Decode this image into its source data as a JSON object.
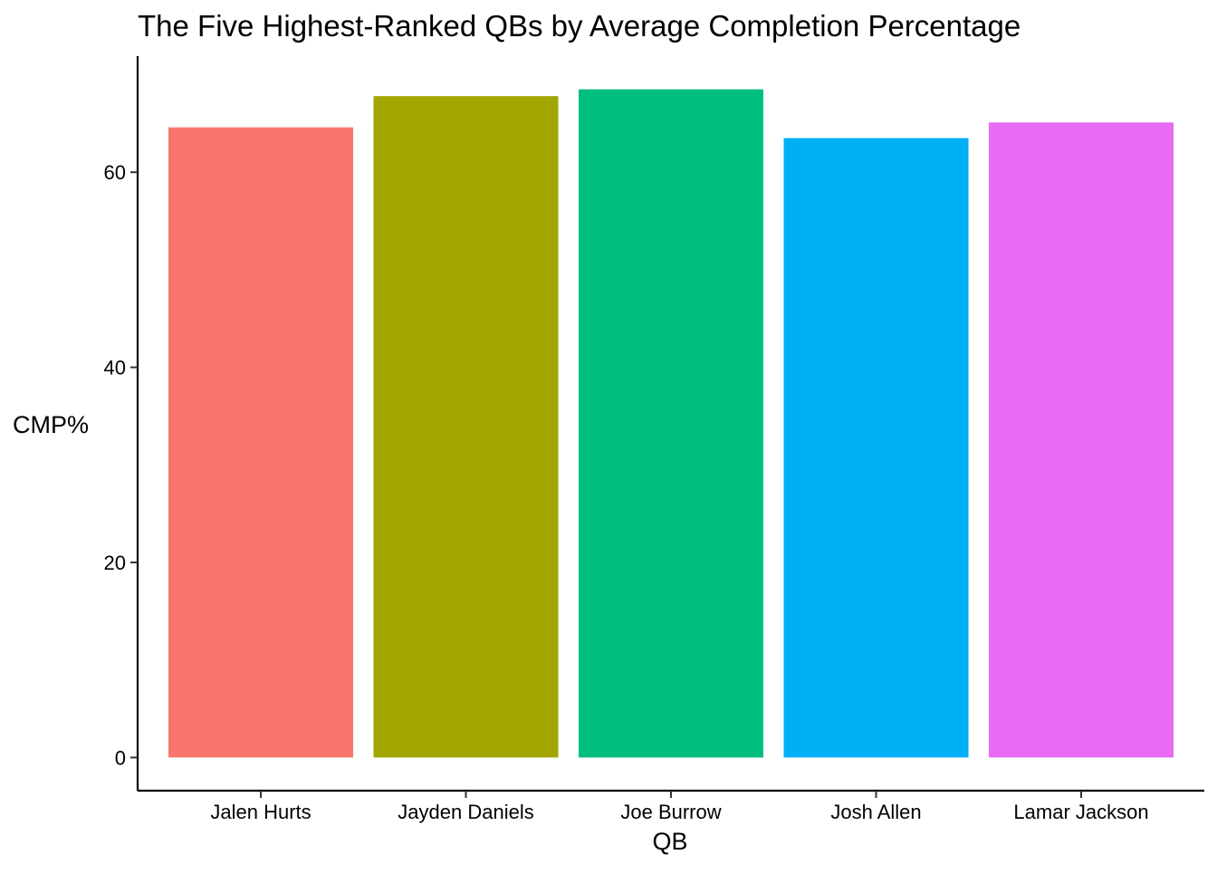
{
  "chart_data": {
    "type": "bar",
    "title": "The Five Highest-Ranked QBs by Average Completion Percentage",
    "xlabel": "QB",
    "ylabel": "CMP%",
    "categories": [
      "Jalen Hurts",
      "Jayden Daniels",
      "Joe Burrow",
      "Josh Allen",
      "Lamar Jackson"
    ],
    "values": [
      64.6,
      67.8,
      68.5,
      63.5,
      65.1
    ],
    "colors": [
      "#F8766D",
      "#A3A500",
      "#00BF7D",
      "#00B0F6",
      "#E76BF3"
    ],
    "yticks": [
      0,
      20,
      40,
      60
    ],
    "ylim": [
      -3.4,
      71.9
    ],
    "grid": false,
    "legend": "none"
  }
}
